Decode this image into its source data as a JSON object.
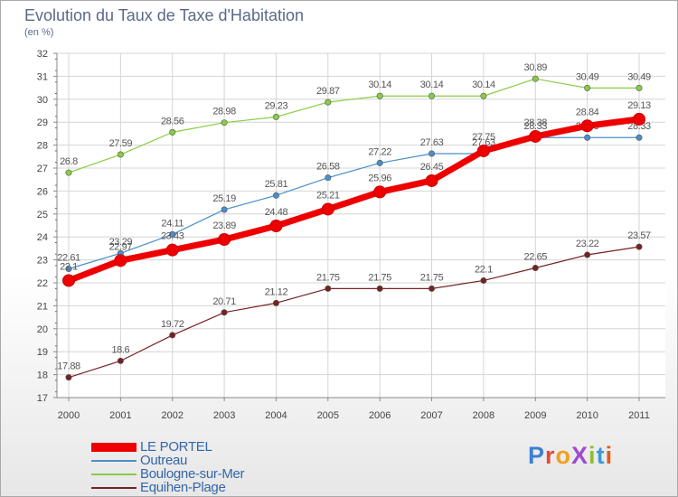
{
  "chart_data": {
    "type": "line",
    "title": "Evolution du Taux de Taxe d'Habitation",
    "subtitle": "",
    "xlabel": "",
    "ylabel": "(en %)",
    "x": [
      "2000",
      "2001",
      "2002",
      "2003",
      "2004",
      "2005",
      "2006",
      "2007",
      "2008",
      "2009",
      "2010",
      "2011"
    ],
    "ylim": [
      17,
      32
    ],
    "yticks": [
      17,
      18,
      19,
      20,
      21,
      22,
      23,
      24,
      25,
      26,
      27,
      28,
      29,
      30,
      31,
      32
    ],
    "grid": true,
    "legend_position": "bottom-left",
    "series": [
      {
        "name": "LE PORTEL",
        "color": "#ee0000",
        "values": [
          22.1,
          22.97,
          23.43,
          23.89,
          24.48,
          25.21,
          25.96,
          26.45,
          27.75,
          28.38,
          28.84,
          29.13
        ],
        "labels": [
          "22.1",
          "22.97",
          "23.43",
          "23.89",
          "24.48",
          "25.21",
          "25.96",
          "26.45",
          "27.75",
          "28.38",
          "28.84",
          "29.13"
        ]
      },
      {
        "name": "Outreau",
        "color": "#4a8ecb",
        "values": [
          22.61,
          23.29,
          24.11,
          25.19,
          25.81,
          26.58,
          27.22,
          27.63,
          27.63,
          28.33,
          28.33,
          28.33
        ],
        "labels": [
          "22.61",
          "23.29",
          "24.11",
          "25.19",
          "25.81",
          "26.58",
          "27.22",
          "27.63",
          "27.63",
          "28.33",
          "28.33",
          "28.33"
        ]
      },
      {
        "name": "Boulogne-sur-Mer",
        "color": "#88cc44",
        "values": [
          26.8,
          27.59,
          28.56,
          28.98,
          29.23,
          29.87,
          30.14,
          30.14,
          30.14,
          30.89,
          30.49,
          30.49
        ],
        "labels": [
          "26.8",
          "27.59",
          "28.56",
          "28.98",
          "29.23",
          "29.87",
          "30.14",
          "30.14",
          "30.14",
          "30.89",
          "30.49",
          "30.49"
        ]
      },
      {
        "name": "Equihen-Plage",
        "color": "#772222",
        "values": [
          17.88,
          18.6,
          19.72,
          20.71,
          21.12,
          21.75,
          21.75,
          21.75,
          22.1,
          22.65,
          23.22,
          23.57
        ],
        "labels": [
          "17.88",
          "18.6",
          "19.72",
          "20.71",
          "21.12",
          "21.75",
          "21.75",
          "21.75",
          "22.1",
          "22.65",
          "23.22",
          "23.57"
        ]
      }
    ]
  },
  "logo": {
    "text": "ProXiti",
    "letter_colors": [
      "#3f7fd0",
      "#e24a3a",
      "#f0a020",
      "#a04ad0",
      "#8fbf30",
      "#3a9ad8",
      "#e25a20"
    ]
  }
}
